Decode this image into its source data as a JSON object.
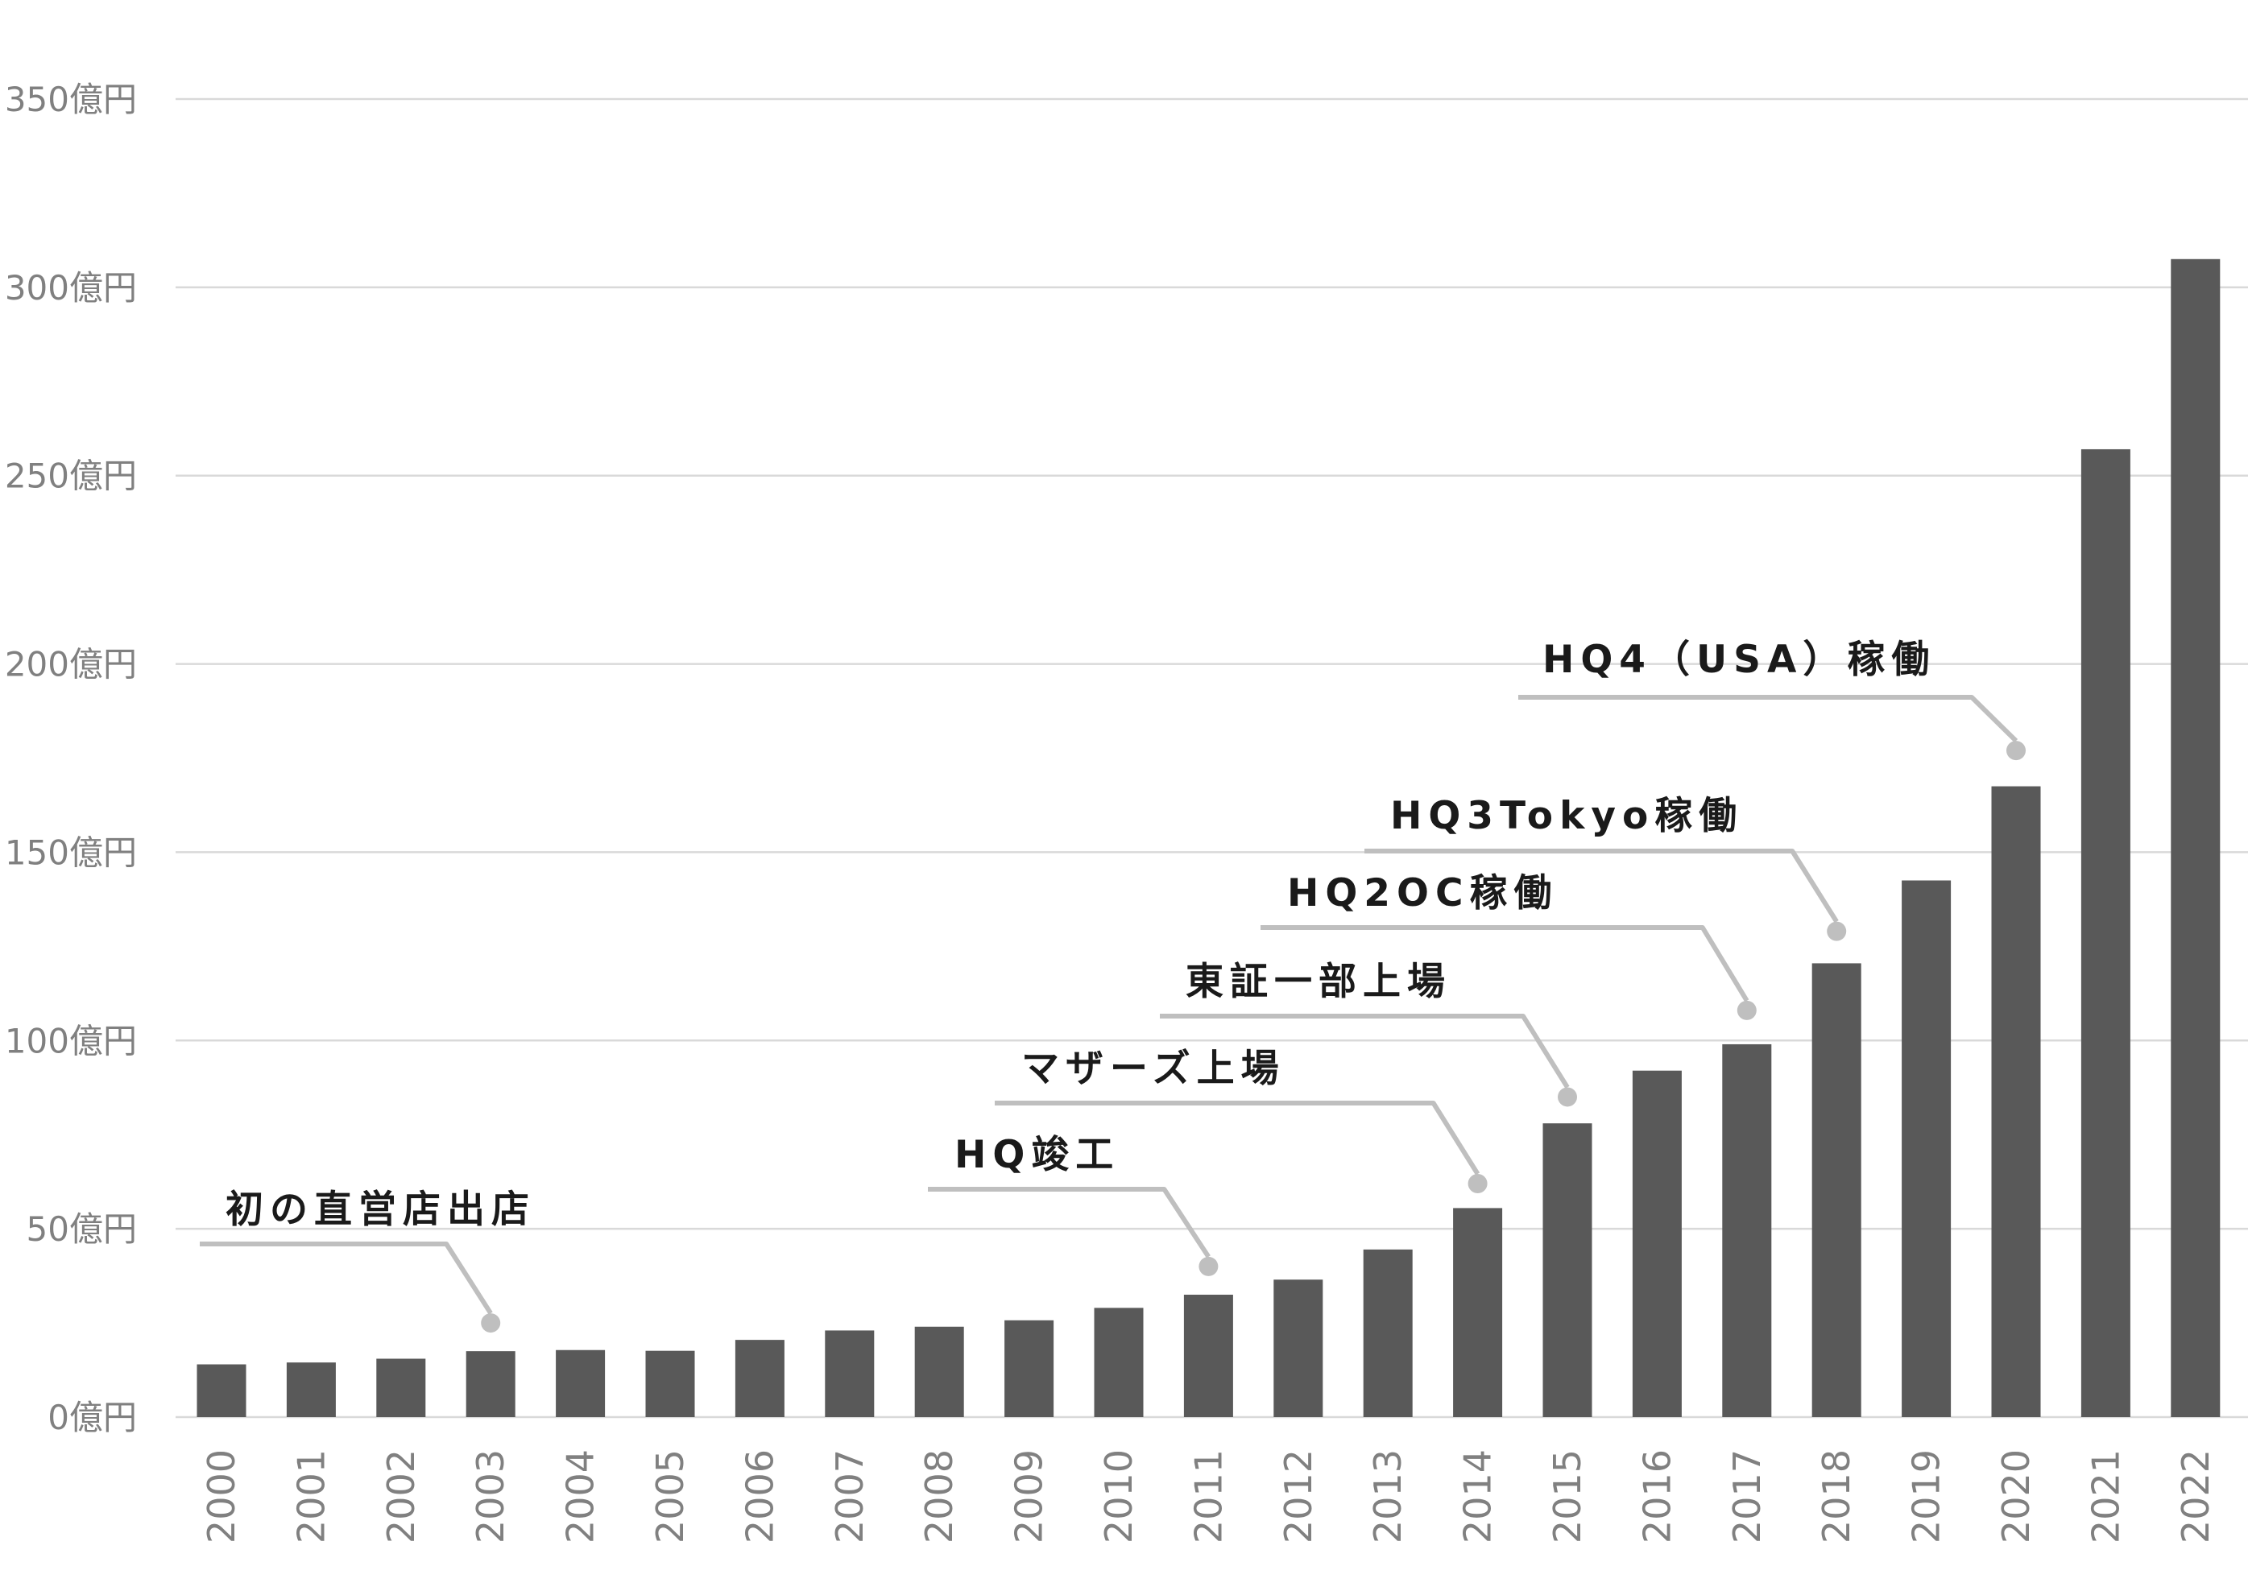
{
  "chart_data": {
    "type": "bar",
    "categories": [
      "2000",
      "2001",
      "2002",
      "2003",
      "2004",
      "2005",
      "2006",
      "2007",
      "2008",
      "2009",
      "2010",
      "2011",
      "2012",
      "2013",
      "2014",
      "2015",
      "2016",
      "2017",
      "2018",
      "2019",
      "2020",
      "2021",
      "2022"
    ],
    "values": [
      14,
      14.5,
      15.5,
      17.5,
      17.8,
      17.6,
      20.5,
      23,
      24,
      25.7,
      29,
      32.5,
      36.5,
      44.5,
      55.5,
      78,
      92,
      99,
      120.5,
      142.5,
      167.5,
      257,
      307.5
    ],
    "ylim": [
      0,
      350
    ],
    "yticks": [
      0,
      50,
      100,
      150,
      200,
      250,
      300,
      350
    ],
    "ytick_labels": [
      "0億円",
      "50億円",
      "100億円",
      "150億円",
      "200億円",
      "250億円",
      "300億円",
      "350億円"
    ],
    "grid": true,
    "colors": {
      "bar": "#595959",
      "grid": "#d9d9d9",
      "leader": "#bfbfbf",
      "tick_text": "#808080",
      "annotation_text": "#1a1a1a"
    },
    "annotations": [
      {
        "text": "初の直営店出店",
        "category": "2003",
        "value": 25
      },
      {
        "text": "HQ竣工",
        "category": "2011",
        "value": 40
      },
      {
        "text": "マザーズ上場",
        "category": "2014",
        "value": 62
      },
      {
        "text": "東証一部上場",
        "category": "2015",
        "value": 85
      },
      {
        "text": "HQ2OC稼働",
        "category": "2017",
        "value": 108
      },
      {
        "text": "HQ3Tokyo稼働",
        "category": "2018",
        "value": 129
      },
      {
        "text": "HQ4（USA）稼働",
        "category": "2020",
        "value": 177
      }
    ]
  }
}
